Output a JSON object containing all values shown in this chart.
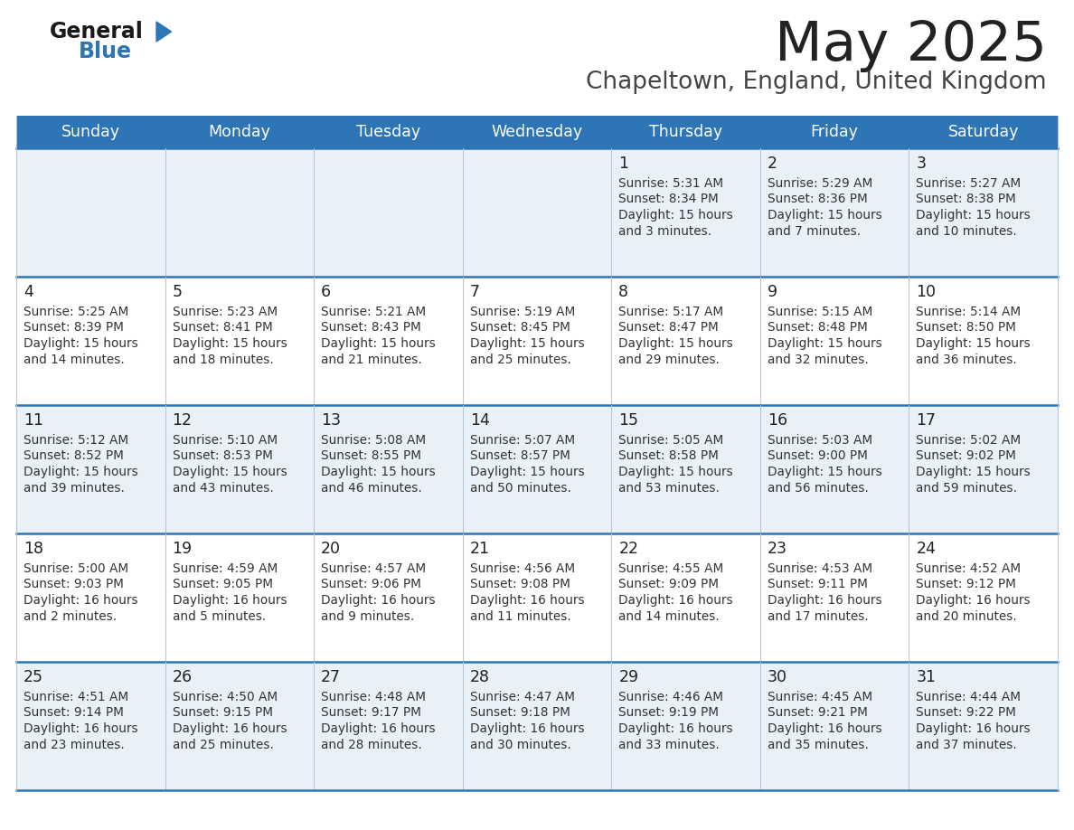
{
  "title": "May 2025",
  "subtitle": "Chapeltown, England, United Kingdom",
  "days_of_week": [
    "Sunday",
    "Monday",
    "Tuesday",
    "Wednesday",
    "Thursday",
    "Friday",
    "Saturday"
  ],
  "header_bg": "#2e75b6",
  "header_text": "#ffffff",
  "row_bg_light": "#eaf0f8",
  "row_bg_white": "#ffffff",
  "border_color": "#2e75b6",
  "sep_color": "#b0c4d8",
  "day_num_color": "#222222",
  "cell_text_color": "#333333",
  "title_color": "#222222",
  "subtitle_color": "#444444",
  "calendar": [
    [
      null,
      null,
      null,
      null,
      {
        "day": 1,
        "sunrise": "5:31 AM",
        "sunset": "8:34 PM",
        "daylight": "15 hours and 3 minutes"
      },
      {
        "day": 2,
        "sunrise": "5:29 AM",
        "sunset": "8:36 PM",
        "daylight": "15 hours and 7 minutes"
      },
      {
        "day": 3,
        "sunrise": "5:27 AM",
        "sunset": "8:38 PM",
        "daylight": "15 hours and 10 minutes"
      }
    ],
    [
      {
        "day": 4,
        "sunrise": "5:25 AM",
        "sunset": "8:39 PM",
        "daylight": "15 hours and 14 minutes"
      },
      {
        "day": 5,
        "sunrise": "5:23 AM",
        "sunset": "8:41 PM",
        "daylight": "15 hours and 18 minutes"
      },
      {
        "day": 6,
        "sunrise": "5:21 AM",
        "sunset": "8:43 PM",
        "daylight": "15 hours and 21 minutes"
      },
      {
        "day": 7,
        "sunrise": "5:19 AM",
        "sunset": "8:45 PM",
        "daylight": "15 hours and 25 minutes"
      },
      {
        "day": 8,
        "sunrise": "5:17 AM",
        "sunset": "8:47 PM",
        "daylight": "15 hours and 29 minutes"
      },
      {
        "day": 9,
        "sunrise": "5:15 AM",
        "sunset": "8:48 PM",
        "daylight": "15 hours and 32 minutes"
      },
      {
        "day": 10,
        "sunrise": "5:14 AM",
        "sunset": "8:50 PM",
        "daylight": "15 hours and 36 minutes"
      }
    ],
    [
      {
        "day": 11,
        "sunrise": "5:12 AM",
        "sunset": "8:52 PM",
        "daylight": "15 hours and 39 minutes"
      },
      {
        "day": 12,
        "sunrise": "5:10 AM",
        "sunset": "8:53 PM",
        "daylight": "15 hours and 43 minutes"
      },
      {
        "day": 13,
        "sunrise": "5:08 AM",
        "sunset": "8:55 PM",
        "daylight": "15 hours and 46 minutes"
      },
      {
        "day": 14,
        "sunrise": "5:07 AM",
        "sunset": "8:57 PM",
        "daylight": "15 hours and 50 minutes"
      },
      {
        "day": 15,
        "sunrise": "5:05 AM",
        "sunset": "8:58 PM",
        "daylight": "15 hours and 53 minutes"
      },
      {
        "day": 16,
        "sunrise": "5:03 AM",
        "sunset": "9:00 PM",
        "daylight": "15 hours and 56 minutes"
      },
      {
        "day": 17,
        "sunrise": "5:02 AM",
        "sunset": "9:02 PM",
        "daylight": "15 hours and 59 minutes"
      }
    ],
    [
      {
        "day": 18,
        "sunrise": "5:00 AM",
        "sunset": "9:03 PM",
        "daylight": "16 hours and 2 minutes"
      },
      {
        "day": 19,
        "sunrise": "4:59 AM",
        "sunset": "9:05 PM",
        "daylight": "16 hours and 5 minutes"
      },
      {
        "day": 20,
        "sunrise": "4:57 AM",
        "sunset": "9:06 PM",
        "daylight": "16 hours and 9 minutes"
      },
      {
        "day": 21,
        "sunrise": "4:56 AM",
        "sunset": "9:08 PM",
        "daylight": "16 hours and 11 minutes"
      },
      {
        "day": 22,
        "sunrise": "4:55 AM",
        "sunset": "9:09 PM",
        "daylight": "16 hours and 14 minutes"
      },
      {
        "day": 23,
        "sunrise": "4:53 AM",
        "sunset": "9:11 PM",
        "daylight": "16 hours and 17 minutes"
      },
      {
        "day": 24,
        "sunrise": "4:52 AM",
        "sunset": "9:12 PM",
        "daylight": "16 hours and 20 minutes"
      }
    ],
    [
      {
        "day": 25,
        "sunrise": "4:51 AM",
        "sunset": "9:14 PM",
        "daylight": "16 hours and 23 minutes"
      },
      {
        "day": 26,
        "sunrise": "4:50 AM",
        "sunset": "9:15 PM",
        "daylight": "16 hours and 25 minutes"
      },
      {
        "day": 27,
        "sunrise": "4:48 AM",
        "sunset": "9:17 PM",
        "daylight": "16 hours and 28 minutes"
      },
      {
        "day": 28,
        "sunrise": "4:47 AM",
        "sunset": "9:18 PM",
        "daylight": "16 hours and 30 minutes"
      },
      {
        "day": 29,
        "sunrise": "4:46 AM",
        "sunset": "9:19 PM",
        "daylight": "16 hours and 33 minutes"
      },
      {
        "day": 30,
        "sunrise": "4:45 AM",
        "sunset": "9:21 PM",
        "daylight": "16 hours and 35 minutes"
      },
      {
        "day": 31,
        "sunrise": "4:44 AM",
        "sunset": "9:22 PM",
        "daylight": "16 hours and 37 minutes"
      }
    ]
  ]
}
